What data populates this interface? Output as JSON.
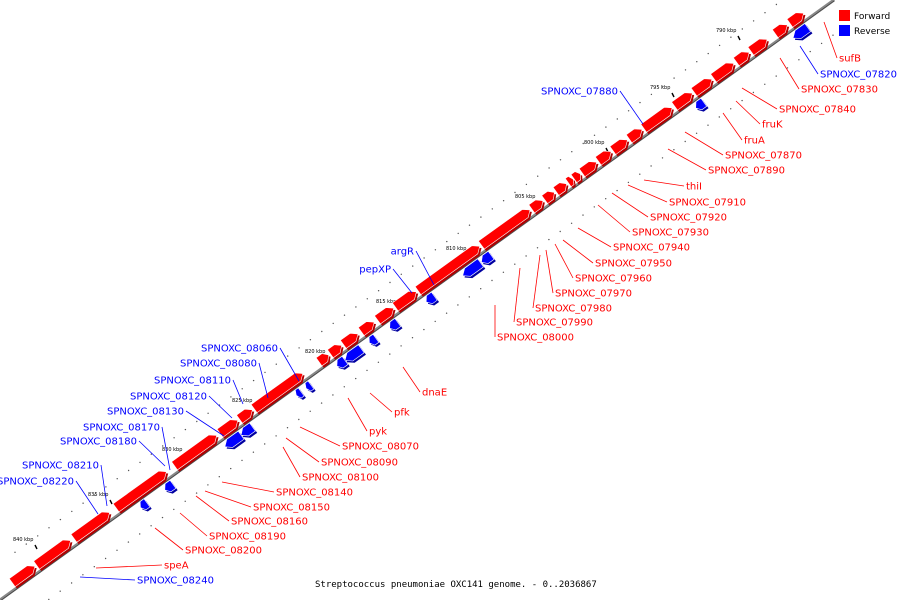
{
  "caption": "Streptococcus pneumoniae OXC141 genome. - 0..2036867",
  "legend": [
    {
      "label": "Forward",
      "color": "#ff0000"
    },
    {
      "label": "Reverse",
      "color": "#0000ff"
    }
  ],
  "colors": {
    "forward": "#ff0000",
    "reverse": "#0000ff",
    "backbone": "#888888"
  },
  "ticks": [
    "790 kbp",
    "795 kbp",
    "800 kbp",
    "805 kbp",
    "810 kbp",
    "815 kbp",
    "820 kbp",
    "825 kbp",
    "830 kbp",
    "835 kbp",
    "840 kbp"
  ],
  "forward_genes": [
    "sufB",
    "SPNOXC_07830",
    "SPNOXC_07840",
    "fruK",
    "fruA",
    "SPNOXC_07870",
    "SPNOXC_07890",
    "thiI",
    "SPNOXC_07910",
    "SPNOXC_07920",
    "SPNOXC_07930",
    "SPNOXC_07940",
    "SPNOXC_07950",
    "SPNOXC_07960",
    "SPNOXC_07970",
    "SPNOXC_07980",
    "SPNOXC_07990",
    "SPNOXC_08000",
    "dnaE",
    "pfk",
    "pyk",
    "SPNOXC_08070",
    "SPNOXC_08090",
    "SPNOXC_08100",
    "SPNOXC_08140",
    "SPNOXC_08150",
    "SPNOXC_08160",
    "SPNOXC_08190",
    "SPNOXC_08200",
    "speA"
  ],
  "reverse_genes": [
    "SPNOXC_07820",
    "SPNOXC_07880",
    "argR",
    "pepXP",
    "SPNOXC_08060",
    "SPNOXC_08080",
    "SPNOXC_08110",
    "SPNOXC_08120",
    "SPNOXC_08130",
    "SPNOXC_08170",
    "SPNOXC_08180",
    "SPNOXC_08210",
    "SPNOXC_08220",
    "SPNOXC_08240"
  ]
}
